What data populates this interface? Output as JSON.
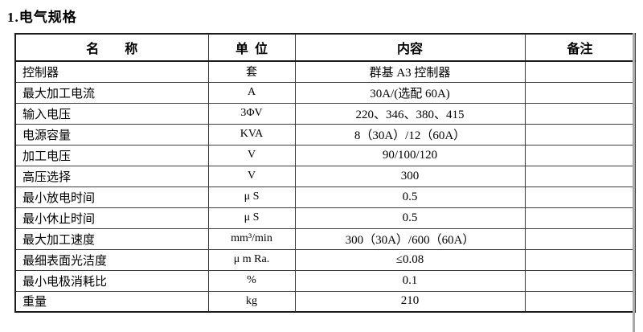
{
  "page": {
    "title": "1.电气规格"
  },
  "table": {
    "headers": [
      {
        "label": "名        称"
      },
      {
        "label": "单  位"
      },
      {
        "label": "内容"
      },
      {
        "label": "备注"
      }
    ],
    "rows": [
      {
        "name": "控制器",
        "unit": "套",
        "content": "群基 A3 控制器",
        "remark": ""
      },
      {
        "name": "最大加工电流",
        "unit": "A",
        "content": "30A/(选配 60A)",
        "remark": ""
      },
      {
        "name": "输入电压",
        "unit": "3ΦV",
        "content": "220、346、380、415",
        "remark": ""
      },
      {
        "name": "电源容量",
        "unit": "KVA",
        "content": "8（30A）/12（60A）",
        "remark": ""
      },
      {
        "name": "加工电压",
        "unit": "V",
        "content": "90/100/120",
        "remark": ""
      },
      {
        "name": "高压选择",
        "unit": "V",
        "content": "300",
        "remark": ""
      },
      {
        "name": "最小放电时间",
        "unit": "μ S",
        "content": "0.5",
        "remark": ""
      },
      {
        "name": "最小休止时间",
        "unit": "μ S",
        "content": "0.5",
        "remark": ""
      },
      {
        "name": "最大加工速度",
        "unit": "mm³/min",
        "content": "300（30A）/600（60A）",
        "remark": ""
      },
      {
        "name": "最细表面光洁度",
        "unit": "μ m Ra.",
        "content": "≤0.08",
        "remark": ""
      },
      {
        "name": "最小电极消耗比",
        "unit": "%",
        "content": "0.1",
        "remark": ""
      },
      {
        "name": "重量",
        "unit": "kg",
        "content": "210",
        "remark": ""
      }
    ]
  }
}
